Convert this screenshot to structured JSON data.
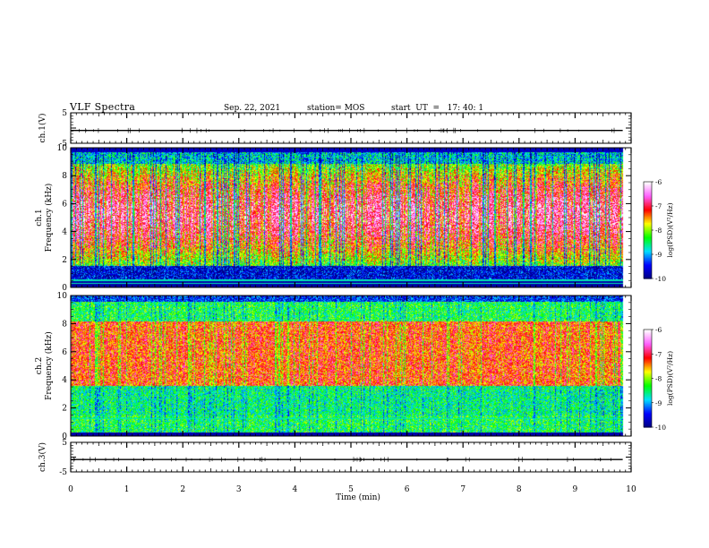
{
  "header": {
    "title": "VLF Spectra",
    "date": "Sep. 22, 2021",
    "station": "station= MOS",
    "start_ut": "start  UT  =   17: 40: 1"
  },
  "colors": {
    "accent": "#000000",
    "colormap": [
      "#000080",
      "#0000ff",
      "#00e0ff",
      "#00ff00",
      "#ffff00",
      "#ff0000",
      "#ff60ff",
      "#ffffff"
    ]
  },
  "chart_data": [
    {
      "type": "line",
      "panel": "waveform-ch1",
      "ylabel": "ch.1(V)",
      "ylim": [
        -5,
        5
      ],
      "yticks": [
        "5",
        "",
        "-5"
      ],
      "x": [
        0,
        10
      ],
      "values": [
        -0.8,
        -0.8
      ],
      "xlim": [
        0,
        10
      ]
    },
    {
      "type": "heatmap",
      "panel": "spectrogram-ch1",
      "ylabel": "ch.1 Frequency (kHz)",
      "ylim": [
        0,
        10
      ],
      "yticks": [
        "0",
        "2",
        "4",
        "6",
        "8",
        "10"
      ],
      "xlim": [
        0,
        10
      ],
      "data_end_min": 9.85,
      "band_kHz": [
        0.5,
        9.8
      ],
      "dominant": "broadband vertical impulsive spherics, intense 2–9 kHz",
      "colorbar": {
        "label": "log(PSD)(V²/Hz)",
        "range": [
          -10,
          -6
        ],
        "ticks": [
          "-6",
          "-7",
          "-8",
          "-9",
          "-10"
        ]
      }
    },
    {
      "type": "heatmap",
      "panel": "spectrogram-ch2",
      "ylabel": "ch.2 Frequency (kHz)",
      "ylim": [
        0,
        10
      ],
      "yticks": [
        "0",
        "2",
        "4",
        "6",
        "8",
        "10"
      ],
      "xlim": [
        0,
        10
      ],
      "data_end_min": 9.85,
      "peak_band_kHz": [
        4,
        8
      ],
      "colorbar": {
        "label": "log(PSD)(V²/Hz)",
        "range": [
          -10,
          -6
        ],
        "ticks": [
          "-6",
          "-7",
          "-8",
          "-9",
          "-10"
        ]
      }
    },
    {
      "type": "line",
      "panel": "waveform-ch3",
      "ylabel": "ch.3(V)",
      "ylim": [
        -5,
        5
      ],
      "yticks": [
        "5",
        "",
        "-5"
      ],
      "x": [
        0,
        10
      ],
      "values": [
        -0.8,
        -0.8
      ],
      "xlim": [
        0,
        10
      ]
    }
  ],
  "xaxis": {
    "label": "Time  (min)",
    "ticks": [
      "0",
      "1",
      "2",
      "3",
      "4",
      "5",
      "6",
      "7",
      "8",
      "9",
      "10"
    ]
  }
}
